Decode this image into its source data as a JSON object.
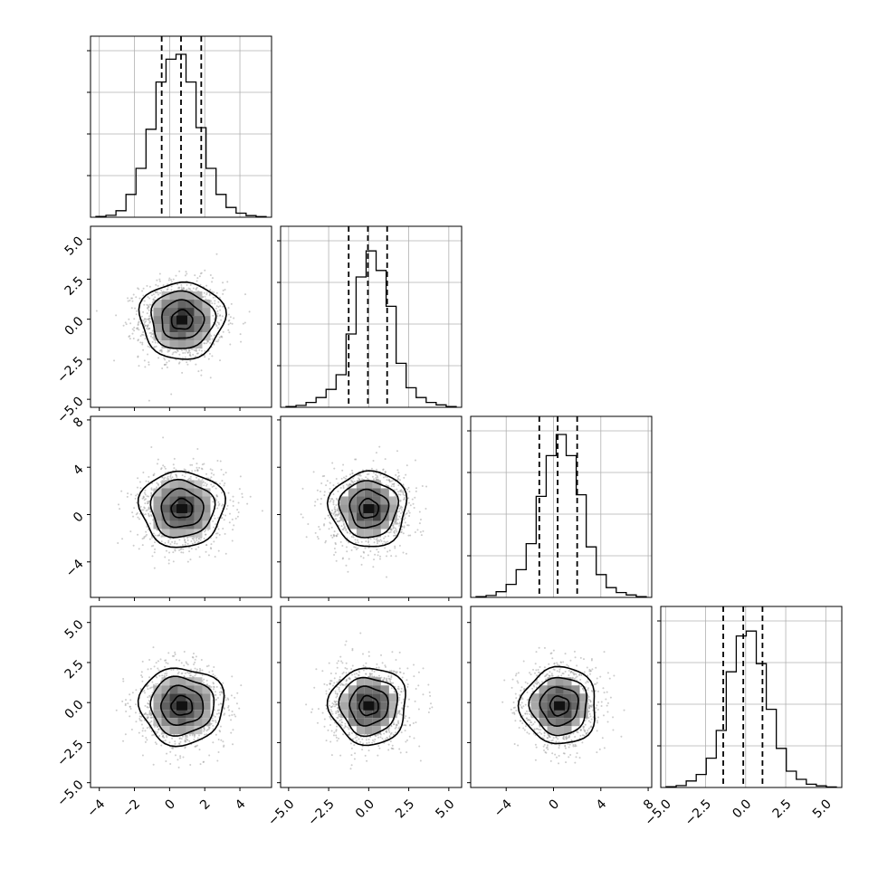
{
  "chart_data": {
    "type": "corner",
    "description_free": true,
    "n_params": 4,
    "colors": {
      "line": "#000000",
      "grid": "#b0b0b0",
      "points": "#9a9a9a",
      "background": "#ffffff"
    },
    "grid": true,
    "params": [
      {
        "index": 0,
        "range": [
          -4.5,
          5.8
        ],
        "ticks": [
          -4,
          -2,
          0,
          2,
          4
        ],
        "tick_labels": [
          "−4",
          "−2",
          "0",
          "2",
          "4"
        ],
        "quantiles": [
          -0.45,
          0.65,
          1.8
        ]
      },
      {
        "index": 1,
        "range": [
          -5.5,
          5.8
        ],
        "ticks": [
          -5.0,
          -2.5,
          0.0,
          2.5,
          5.0
        ],
        "tick_labels": [
          "−5.0",
          "−2.5",
          "0.0",
          "2.5",
          "5.0"
        ],
        "quantiles": [
          -1.25,
          -0.05,
          1.15
        ]
      },
      {
        "index": 2,
        "range": [
          -7.0,
          8.3
        ],
        "ticks": [
          -4,
          0,
          4,
          8
        ],
        "tick_labels": [
          "−4",
          "0",
          "4",
          "8"
        ],
        "y_tick_labels": [
          "−4",
          "0",
          "4",
          "8"
        ],
        "quantiles": [
          -1.2,
          0.35,
          2.0
        ]
      },
      {
        "index": 3,
        "range": [
          -5.3,
          6.0
        ],
        "ticks": [
          -5.0,
          -2.5,
          0.0,
          2.5,
          5.0
        ],
        "tick_labels": [
          "−5.0",
          "−2.5",
          "0.0",
          "2.5",
          "5.0"
        ],
        "quantiles": [
          -1.4,
          -0.15,
          1.05
        ]
      }
    ],
    "histograms": [
      {
        "param": 0,
        "counts": [
          0.005,
          0.012,
          0.04,
          0.14,
          0.3,
          0.54,
          0.83,
          0.97,
          1.0,
          0.83,
          0.55,
          0.3,
          0.14,
          0.06,
          0.025,
          0.01,
          0.004
        ]
      },
      {
        "param": 1,
        "counts": [
          0.005,
          0.012,
          0.03,
          0.06,
          0.11,
          0.2,
          0.45,
          0.8,
          0.96,
          0.84,
          0.62,
          0.27,
          0.12,
          0.06,
          0.03,
          0.015,
          0.005
        ]
      },
      {
        "param": 2,
        "counts": [
          0.005,
          0.012,
          0.035,
          0.08,
          0.17,
          0.33,
          0.62,
          0.87,
          1.0,
          0.87,
          0.63,
          0.31,
          0.14,
          0.06,
          0.03,
          0.015,
          0.005
        ]
      },
      {
        "param": 3,
        "counts": [
          0.005,
          0.012,
          0.04,
          0.08,
          0.18,
          0.35,
          0.71,
          0.93,
          0.96,
          0.76,
          0.48,
          0.24,
          0.1,
          0.05,
          0.02,
          0.01,
          0.003
        ]
      }
    ],
    "pairs": [
      {
        "x_param": 0,
        "y_param": 1,
        "center": [
          0.7,
          -0.05
        ],
        "sigma": [
          1.2,
          1.2
        ]
      },
      {
        "x_param": 0,
        "y_param": 2,
        "center": [
          0.7,
          0.5
        ],
        "sigma": [
          1.2,
          1.6
        ]
      },
      {
        "x_param": 1,
        "y_param": 2,
        "center": [
          0.0,
          0.5
        ],
        "sigma": [
          1.2,
          1.6
        ]
      },
      {
        "x_param": 0,
        "y_param": 3,
        "center": [
          0.7,
          -0.2
        ],
        "sigma": [
          1.2,
          1.2
        ]
      },
      {
        "x_param": 1,
        "y_param": 3,
        "center": [
          0.0,
          -0.2
        ],
        "sigma": [
          1.2,
          1.2
        ]
      },
      {
        "x_param": 2,
        "y_param": 3,
        "center": [
          0.5,
          -0.2
        ],
        "sigma": [
          1.6,
          1.2
        ]
      }
    ],
    "contour_levels": [
      "0.5σ",
      "1σ",
      "1.5σ",
      "2σ"
    ]
  }
}
